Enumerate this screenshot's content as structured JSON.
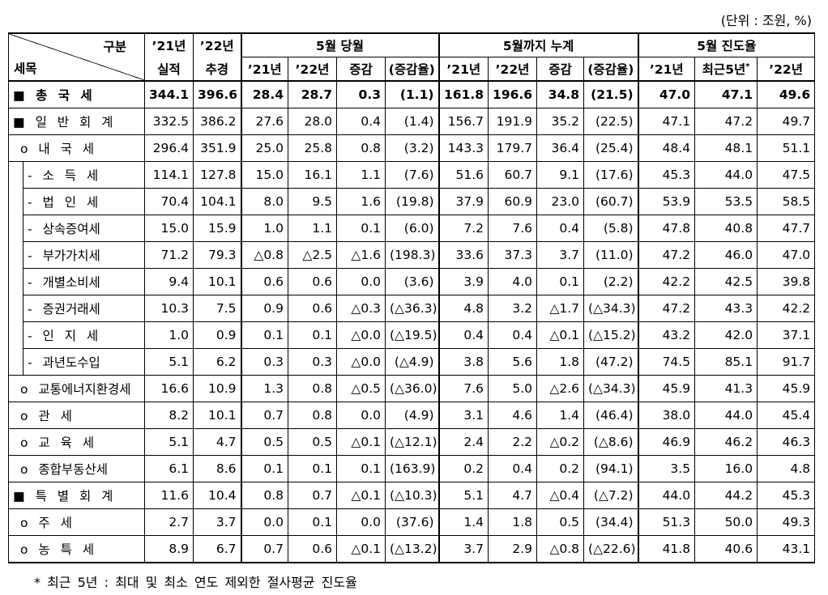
{
  "unit": "(단위 : 조원, %)",
  "header": {
    "corner_top": "구분",
    "corner_bottom": "세목",
    "col_a": [
      "’21년",
      "실적"
    ],
    "col_b": [
      "’22년",
      "추경"
    ],
    "groups": [
      {
        "title": "5월 당월",
        "cols": [
          "’21년",
          "’22년",
          "증감",
          "(증감율)"
        ]
      },
      {
        "title": "5월까지 누계",
        "cols": [
          "’21년",
          "’22년",
          "증감",
          "(증감율)"
        ]
      },
      {
        "title": "5월 진도율",
        "cols": [
          "’21년",
          "최근5년",
          "’22년"
        ]
      }
    ],
    "note_mark": "*"
  },
  "rows": [
    {
      "label": "■ 총 국 세",
      "values": [
        "344.1",
        "396.6",
        "28.4",
        "28.7",
        "0.3",
        "(1.1)",
        "161.8",
        "196.6",
        "34.8",
        "(21.5)",
        "47.0",
        "47.1",
        "49.6"
      ]
    },
    {
      "label": "■ 일 반 회 계",
      "values": [
        "332.5",
        "386.2",
        "27.6",
        "28.0",
        "0.4",
        "(1.4)",
        "156.7",
        "191.9",
        "35.2",
        "(22.5)",
        "47.1",
        "47.2",
        "49.7"
      ]
    },
    {
      "label": "o 내 국 세",
      "values": [
        "296.4",
        "351.9",
        "25.0",
        "25.8",
        "0.8",
        "(3.2)",
        "143.3",
        "179.7",
        "36.4",
        "(25.4)",
        "48.4",
        "48.1",
        "51.1"
      ]
    },
    {
      "label": "- 소 득 세",
      "values": [
        "114.1",
        "127.8",
        "15.0",
        "16.1",
        "1.1",
        "(7.6)",
        "51.6",
        "60.7",
        "9.1",
        "(17.6)",
        "45.3",
        "44.0",
        "47.5"
      ]
    },
    {
      "label": "- 법 인 세",
      "values": [
        "70.4",
        "104.1",
        "8.0",
        "9.5",
        "1.6",
        "(19.8)",
        "37.9",
        "60.9",
        "23.0",
        "(60.7)",
        "53.9",
        "53.5",
        "58.5"
      ]
    },
    {
      "label": "- 상속증여세",
      "values": [
        "15.0",
        "15.9",
        "1.0",
        "1.1",
        "0.1",
        "(6.0)",
        "7.2",
        "7.6",
        "0.4",
        "(5.8)",
        "47.8",
        "40.8",
        "47.7"
      ]
    },
    {
      "label": "- 부가가치세",
      "values": [
        "71.2",
        "79.3",
        "△0.8",
        "△2.5",
        "△1.6",
        "(198.3)",
        "33.6",
        "37.3",
        "3.7",
        "(11.0)",
        "47.2",
        "46.0",
        "47.0"
      ]
    },
    {
      "label": "- 개별소비세",
      "values": [
        "9.4",
        "10.1",
        "0.6",
        "0.6",
        "0.0",
        "(3.6)",
        "3.9",
        "4.0",
        "0.1",
        "(2.2)",
        "42.2",
        "42.5",
        "39.8"
      ]
    },
    {
      "label": "- 증권거래세",
      "values": [
        "10.3",
        "7.5",
        "0.9",
        "0.6",
        "△0.3",
        "(△36.3)",
        "4.8",
        "3.2",
        "△1.7",
        "(△34.3)",
        "47.2",
        "43.3",
        "42.2"
      ]
    },
    {
      "label": "- 인 지 세",
      "values": [
        "1.0",
        "0.9",
        "0.1",
        "0.1",
        "△0.0",
        "(△19.5)",
        "0.4",
        "0.4",
        "△0.1",
        "(△15.2)",
        "43.2",
        "42.0",
        "37.1"
      ]
    },
    {
      "label": "- 과년도수입",
      "values": [
        "5.1",
        "6.2",
        "0.3",
        "0.3",
        "△0.0",
        "(△4.9)",
        "3.8",
        "5.6",
        "1.8",
        "(47.2)",
        "74.5",
        "85.1",
        "91.7"
      ]
    },
    {
      "label": "o 교통에너지환경세",
      "values": [
        "16.6",
        "10.9",
        "1.3",
        "0.8",
        "△0.5",
        "(△36.0)",
        "7.6",
        "5.0",
        "△2.6",
        "(△34.3)",
        "45.9",
        "41.3",
        "45.9"
      ]
    },
    {
      "label": "o 관 세",
      "values": [
        "8.2",
        "10.1",
        "0.7",
        "0.8",
        "0.0",
        "(4.9)",
        "3.1",
        "4.6",
        "1.4",
        "(46.4)",
        "38.0",
        "44.0",
        "45.4"
      ]
    },
    {
      "label": "o 교 육 세",
      "values": [
        "5.1",
        "4.7",
        "0.5",
        "0.5",
        "△0.1",
        "(△12.1)",
        "2.4",
        "2.2",
        "△0.2",
        "(△8.6)",
        "46.9",
        "46.2",
        "46.3"
      ]
    },
    {
      "label": "o 종합부동산세",
      "values": [
        "6.1",
        "8.6",
        "0.1",
        "0.1",
        "0.1",
        "(163.9)",
        "0.2",
        "0.4",
        "0.2",
        "(94.1)",
        "3.5",
        "16.0",
        "4.8"
      ]
    },
    {
      "label": "■ 특 별 회 계",
      "values": [
        "11.6",
        "10.4",
        "0.8",
        "0.7",
        "△0.1",
        "(△10.3)",
        "5.1",
        "4.7",
        "△0.4",
        "(△7.2)",
        "44.0",
        "44.2",
        "45.3"
      ]
    },
    {
      "label": "o 주 세",
      "values": [
        "2.7",
        "3.7",
        "0.0",
        "0.1",
        "0.0",
        "(37.6)",
        "1.4",
        "1.8",
        "0.5",
        "(34.4)",
        "51.3",
        "50.0",
        "49.3"
      ]
    },
    {
      "label": "o 농 특 세",
      "values": [
        "8.9",
        "6.7",
        "0.7",
        "0.6",
        "△0.1",
        "(△13.2)",
        "3.7",
        "2.9",
        "△0.8",
        "(△22.6)",
        "41.8",
        "40.6",
        "43.1"
      ]
    }
  ],
  "footnote": "* 최근 5년 : 최대 및 최소 연도 제외한 절사평균 진도율"
}
